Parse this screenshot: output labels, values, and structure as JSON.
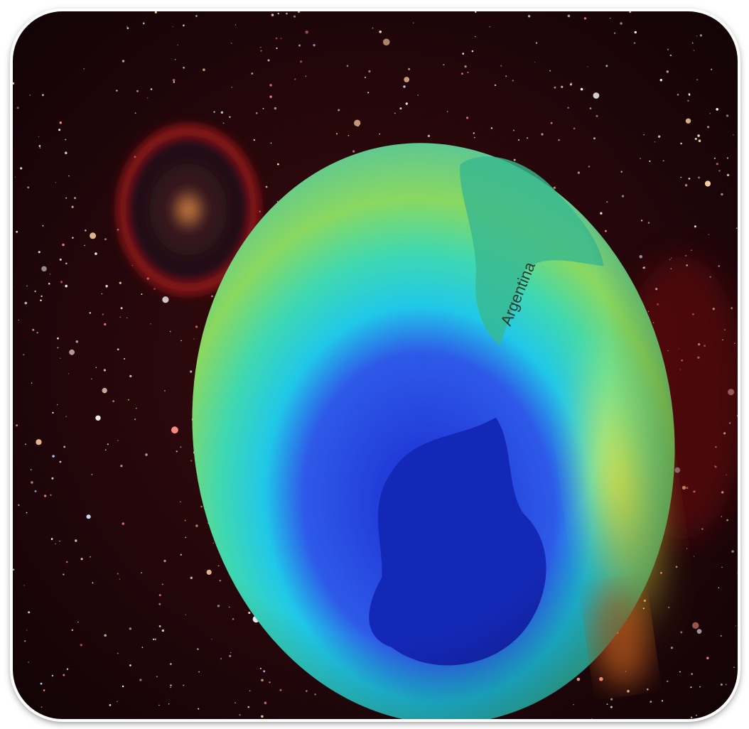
{
  "image": {
    "label": "Argentina"
  }
}
